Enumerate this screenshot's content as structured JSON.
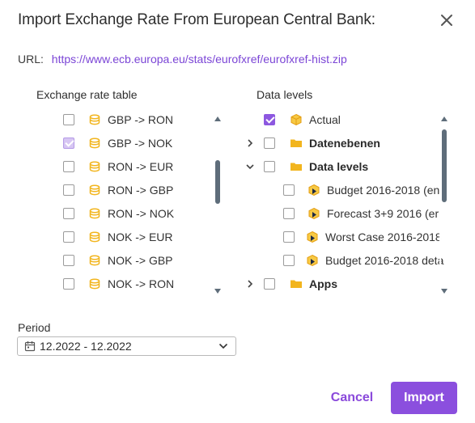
{
  "dialog": {
    "title": "Import Exchange Rate From European Central Bank:",
    "url_label": "URL:",
    "url": "https://www.ecb.europa.eu/stats/eurofxref/eurofxref-hist.zip"
  },
  "exchange_table": {
    "title": "Exchange rate table",
    "items": [
      {
        "label": "GBP -> RON",
        "checked": "false"
      },
      {
        "label": "GBP -> NOK",
        "checked": "partial"
      },
      {
        "label": "RON -> EUR",
        "checked": "false"
      },
      {
        "label": "RON -> GBP",
        "checked": "false"
      },
      {
        "label": "RON -> NOK",
        "checked": "false"
      },
      {
        "label": "NOK -> EUR",
        "checked": "false"
      },
      {
        "label": "NOK -> GBP",
        "checked": "false"
      },
      {
        "label": "NOK -> RON",
        "checked": "false"
      }
    ]
  },
  "data_levels": {
    "title": "Data levels",
    "items": [
      {
        "label": "Actual",
        "checked": "true",
        "icon": "cube-icon",
        "bold": false
      },
      {
        "label": "Datenebenen",
        "checked": "false",
        "icon": "folder-icon",
        "bold": true,
        "expander": "collapsed"
      },
      {
        "label": "Data levels",
        "checked": "false",
        "icon": "folder-icon",
        "bold": true,
        "expander": "expanded"
      },
      {
        "label": "Budget 2016-2018 (en",
        "checked": "false",
        "icon": "cube-arrow-icon",
        "indent": true
      },
      {
        "label": "Forecast 3+9 2016 (er",
        "checked": "false",
        "icon": "cube-arrow-icon",
        "indent": true
      },
      {
        "label": "Worst Case 2016-2018",
        "checked": "false",
        "icon": "cube-arrow-icon",
        "indent": true
      },
      {
        "label": "Budget 2016-2018 deta",
        "checked": "false",
        "icon": "cube-arrow-icon",
        "indent": true
      },
      {
        "label": "Apps",
        "checked": "false",
        "icon": "folder-icon",
        "bold": true,
        "expander": "collapsed"
      }
    ]
  },
  "period": {
    "label": "Period",
    "value": "12.2022 - 12.2022"
  },
  "buttons": {
    "cancel": "Cancel",
    "import": "Import"
  },
  "colors": {
    "accent": "#8b4fde",
    "link": "#7b45d6",
    "icon_gold": "#f2b51e"
  }
}
